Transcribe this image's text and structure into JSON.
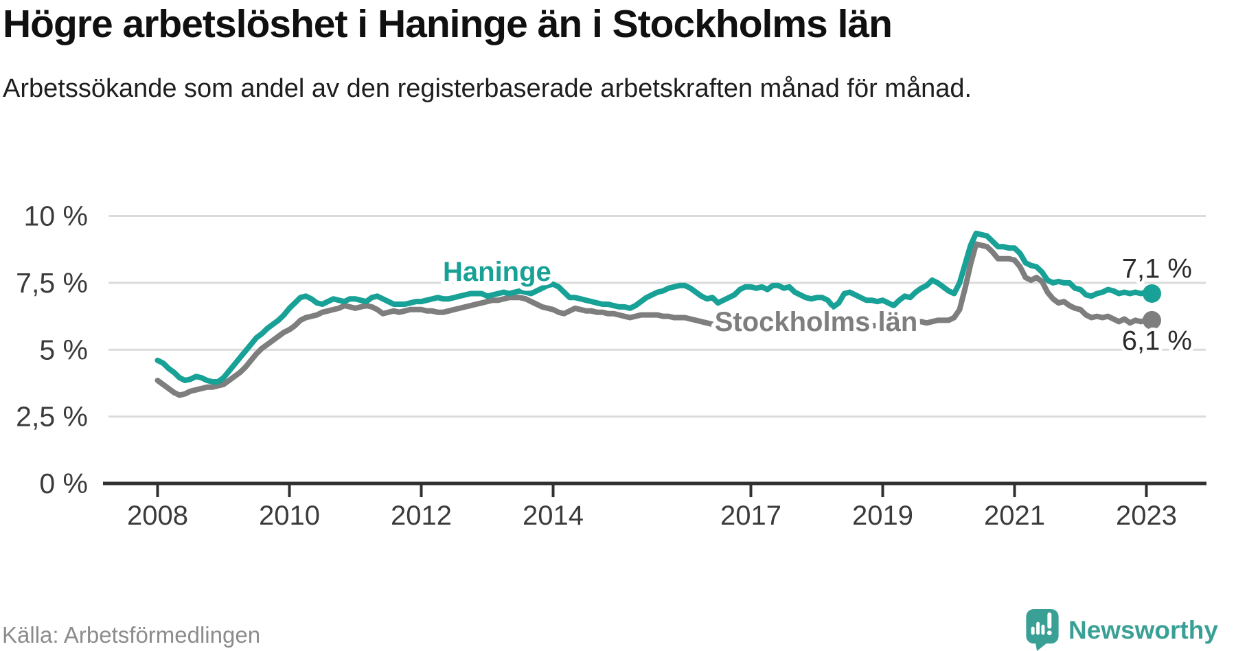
{
  "footer": {
    "source": "Källa: Arbetsförmedlingen",
    "brand": "Newsworthy"
  },
  "colors": {
    "haninge": "#18a196",
    "stockholm": "#7e7e7e",
    "grid": "#dbdbdb",
    "axis": "#303030",
    "tick_label": "#3b3b3b",
    "end_label": "#2b2b2b",
    "logo": "#3aa096"
  },
  "chart_data": {
    "type": "line",
    "title": "Högre arbetslöshet i Haninge än i Stockholms län",
    "subtitle": "Arbetssökande som andel av den registerbaserade arbetskraften månad för månad.",
    "x_unit": "month",
    "x_start": "2008-01",
    "x_end": "2023-02",
    "x_tick_years": [
      2008,
      2010,
      2012,
      2014,
      2017,
      2019,
      2021,
      2023
    ],
    "y_axis": {
      "range": [
        0,
        10.5
      ],
      "grid": true,
      "ticks": [
        {
          "value": 10,
          "label": "10 %"
        },
        {
          "value": 7.5,
          "label": "7,5 %"
        },
        {
          "value": 5,
          "label": "5 %"
        },
        {
          "value": 2.5,
          "label": "2,5 %"
        },
        {
          "value": 0,
          "label": "0 %"
        }
      ]
    },
    "legend_position": "inline-labels",
    "series": [
      {
        "name": "Haninge",
        "color": "#18a196",
        "end_label": "7,1 %",
        "end_value": 7.1,
        "values": [
          4.6,
          4.5,
          4.3,
          4.15,
          3.95,
          3.85,
          3.9,
          4.0,
          3.95,
          3.85,
          3.8,
          3.8,
          3.95,
          4.2,
          4.45,
          4.7,
          4.95,
          5.2,
          5.45,
          5.6,
          5.8,
          5.95,
          6.1,
          6.3,
          6.55,
          6.75,
          6.95,
          7.0,
          6.9,
          6.75,
          6.7,
          6.8,
          6.9,
          6.85,
          6.8,
          6.9,
          6.9,
          6.85,
          6.8,
          6.95,
          7.0,
          6.9,
          6.8,
          6.7,
          6.7,
          6.7,
          6.75,
          6.8,
          6.8,
          6.85,
          6.9,
          6.95,
          6.9,
          6.9,
          6.95,
          7.0,
          7.05,
          7.1,
          7.1,
          7.1,
          7.0,
          7.05,
          7.1,
          7.15,
          7.1,
          7.15,
          7.2,
          7.15,
          7.1,
          7.2,
          7.3,
          7.4,
          7.45,
          7.35,
          7.15,
          6.95,
          6.95,
          6.9,
          6.85,
          6.8,
          6.75,
          6.7,
          6.7,
          6.65,
          6.6,
          6.6,
          6.55,
          6.65,
          6.8,
          6.95,
          7.05,
          7.15,
          7.2,
          7.3,
          7.35,
          7.4,
          7.4,
          7.3,
          7.15,
          7.0,
          6.9,
          6.95,
          6.75,
          6.85,
          6.95,
          7.05,
          7.25,
          7.35,
          7.35,
          7.3,
          7.35,
          7.25,
          7.4,
          7.4,
          7.3,
          7.35,
          7.15,
          7.05,
          6.95,
          6.9,
          6.95,
          6.95,
          6.85,
          6.6,
          6.75,
          7.1,
          7.15,
          7.05,
          6.95,
          6.85,
          6.85,
          6.8,
          6.85,
          6.75,
          6.65,
          6.85,
          7.0,
          6.95,
          7.15,
          7.3,
          7.4,
          7.6,
          7.5,
          7.35,
          7.2,
          7.1,
          7.5,
          8.2,
          8.9,
          9.35,
          9.3,
          9.25,
          9.05,
          8.85,
          8.85,
          8.8,
          8.8,
          8.6,
          8.25,
          8.15,
          8.1,
          7.9,
          7.6,
          7.5,
          7.55,
          7.5,
          7.5,
          7.3,
          7.25,
          7.05,
          7.0,
          7.1,
          7.15,
          7.25,
          7.2,
          7.1,
          7.15,
          7.1,
          7.15,
          7.1,
          7.15,
          7.1
        ]
      },
      {
        "name": "Stockholms län",
        "color": "#7e7e7e",
        "end_label": "6,1 %",
        "end_value": 6.1,
        "values": [
          3.85,
          3.7,
          3.55,
          3.4,
          3.3,
          3.35,
          3.45,
          3.5,
          3.55,
          3.6,
          3.6,
          3.65,
          3.7,
          3.85,
          4.0,
          4.15,
          4.35,
          4.6,
          4.85,
          5.05,
          5.2,
          5.35,
          5.5,
          5.65,
          5.75,
          5.9,
          6.1,
          6.2,
          6.25,
          6.3,
          6.4,
          6.45,
          6.5,
          6.55,
          6.65,
          6.6,
          6.55,
          6.6,
          6.65,
          6.6,
          6.5,
          6.35,
          6.4,
          6.45,
          6.4,
          6.45,
          6.5,
          6.5,
          6.5,
          6.45,
          6.45,
          6.4,
          6.4,
          6.45,
          6.5,
          6.55,
          6.6,
          6.65,
          6.7,
          6.75,
          6.8,
          6.85,
          6.85,
          6.9,
          6.95,
          6.95,
          6.95,
          6.9,
          6.8,
          6.7,
          6.6,
          6.55,
          6.5,
          6.4,
          6.35,
          6.45,
          6.55,
          6.5,
          6.45,
          6.45,
          6.4,
          6.4,
          6.35,
          6.35,
          6.3,
          6.25,
          6.2,
          6.25,
          6.3,
          6.3,
          6.3,
          6.3,
          6.25,
          6.25,
          6.2,
          6.2,
          6.2,
          6.15,
          6.1,
          6.05,
          6.0,
          5.95,
          5.95,
          6.0,
          6.0,
          6.05,
          6.05,
          6.1,
          6.1,
          6.05,
          6.0,
          6.0,
          6.05,
          6.1,
          6.1,
          6.05,
          6.0,
          5.95,
          5.95,
          5.9,
          5.9,
          5.85,
          5.8,
          5.8,
          5.85,
          5.9,
          6.0,
          6.05,
          6.0,
          5.95,
          5.9,
          5.9,
          5.9,
          5.85,
          5.9,
          5.95,
          6.0,
          6.05,
          6.05,
          6.05,
          6.0,
          6.05,
          6.1,
          6.1,
          6.1,
          6.2,
          6.5,
          7.3,
          8.2,
          8.95,
          8.9,
          8.85,
          8.65,
          8.4,
          8.4,
          8.4,
          8.35,
          8.1,
          7.7,
          7.6,
          7.7,
          7.55,
          7.15,
          6.9,
          6.75,
          6.8,
          6.65,
          6.55,
          6.5,
          6.3,
          6.2,
          6.25,
          6.2,
          6.25,
          6.15,
          6.05,
          6.15,
          6.0,
          6.1,
          6.05,
          6.1,
          6.1
        ]
      }
    ]
  }
}
